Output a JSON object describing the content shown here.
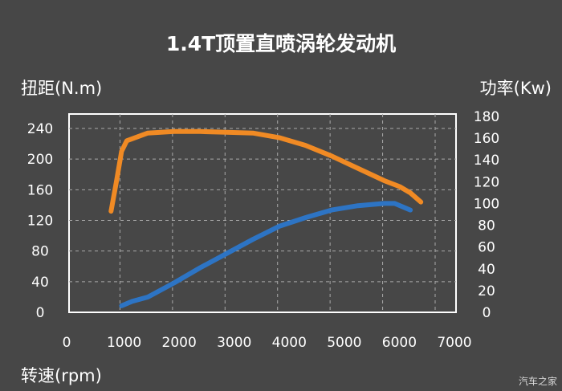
{
  "chart_data": {
    "type": "line",
    "title": "1.4T顶置直喷涡轮发动机",
    "xlabel": "转速(rpm)",
    "ylabel": "扭距(N.m)",
    "ylabel_right": "功率(Kw)",
    "x_ticks": [
      "0",
      "1000",
      "2000",
      "3000",
      "4000",
      "5000",
      "6000",
      "7000"
    ],
    "y_left_ticks": [
      "0",
      "40",
      "80",
      "120",
      "160",
      "200",
      "240"
    ],
    "y_right_ticks": [
      "0",
      "20",
      "40",
      "60",
      "80",
      "100",
      "120",
      "140",
      "160",
      "180"
    ],
    "xlim": [
      0,
      7000
    ],
    "ylim_left": [
      0,
      240
    ],
    "ylim_right": [
      0,
      180
    ],
    "grid": true,
    "series": [
      {
        "name": "扭距",
        "axis": "left",
        "color": "#f08a24",
        "x": [
          800,
          900,
          1000,
          1100,
          1500,
          2000,
          2500,
          3000,
          3500,
          4000,
          4500,
          5000,
          5500,
          6000,
          6300,
          6500,
          6700
        ],
        "y": [
          132,
          170,
          210,
          224,
          234,
          236,
          236,
          235,
          234,
          228,
          218,
          204,
          188,
          172,
          164,
          156,
          144
        ]
      },
      {
        "name": "功率",
        "axis": "right",
        "color": "#2d74c4",
        "x": [
          1000,
          1200,
          1500,
          2000,
          2500,
          3000,
          3500,
          4000,
          4500,
          5000,
          5500,
          6000,
          6200,
          6400,
          6500
        ],
        "y": [
          6,
          10,
          14,
          27,
          41,
          54,
          67,
          79,
          87,
          94,
          98,
          100,
          100,
          96,
          94
        ]
      }
    ],
    "watermark": "汽车之家"
  }
}
